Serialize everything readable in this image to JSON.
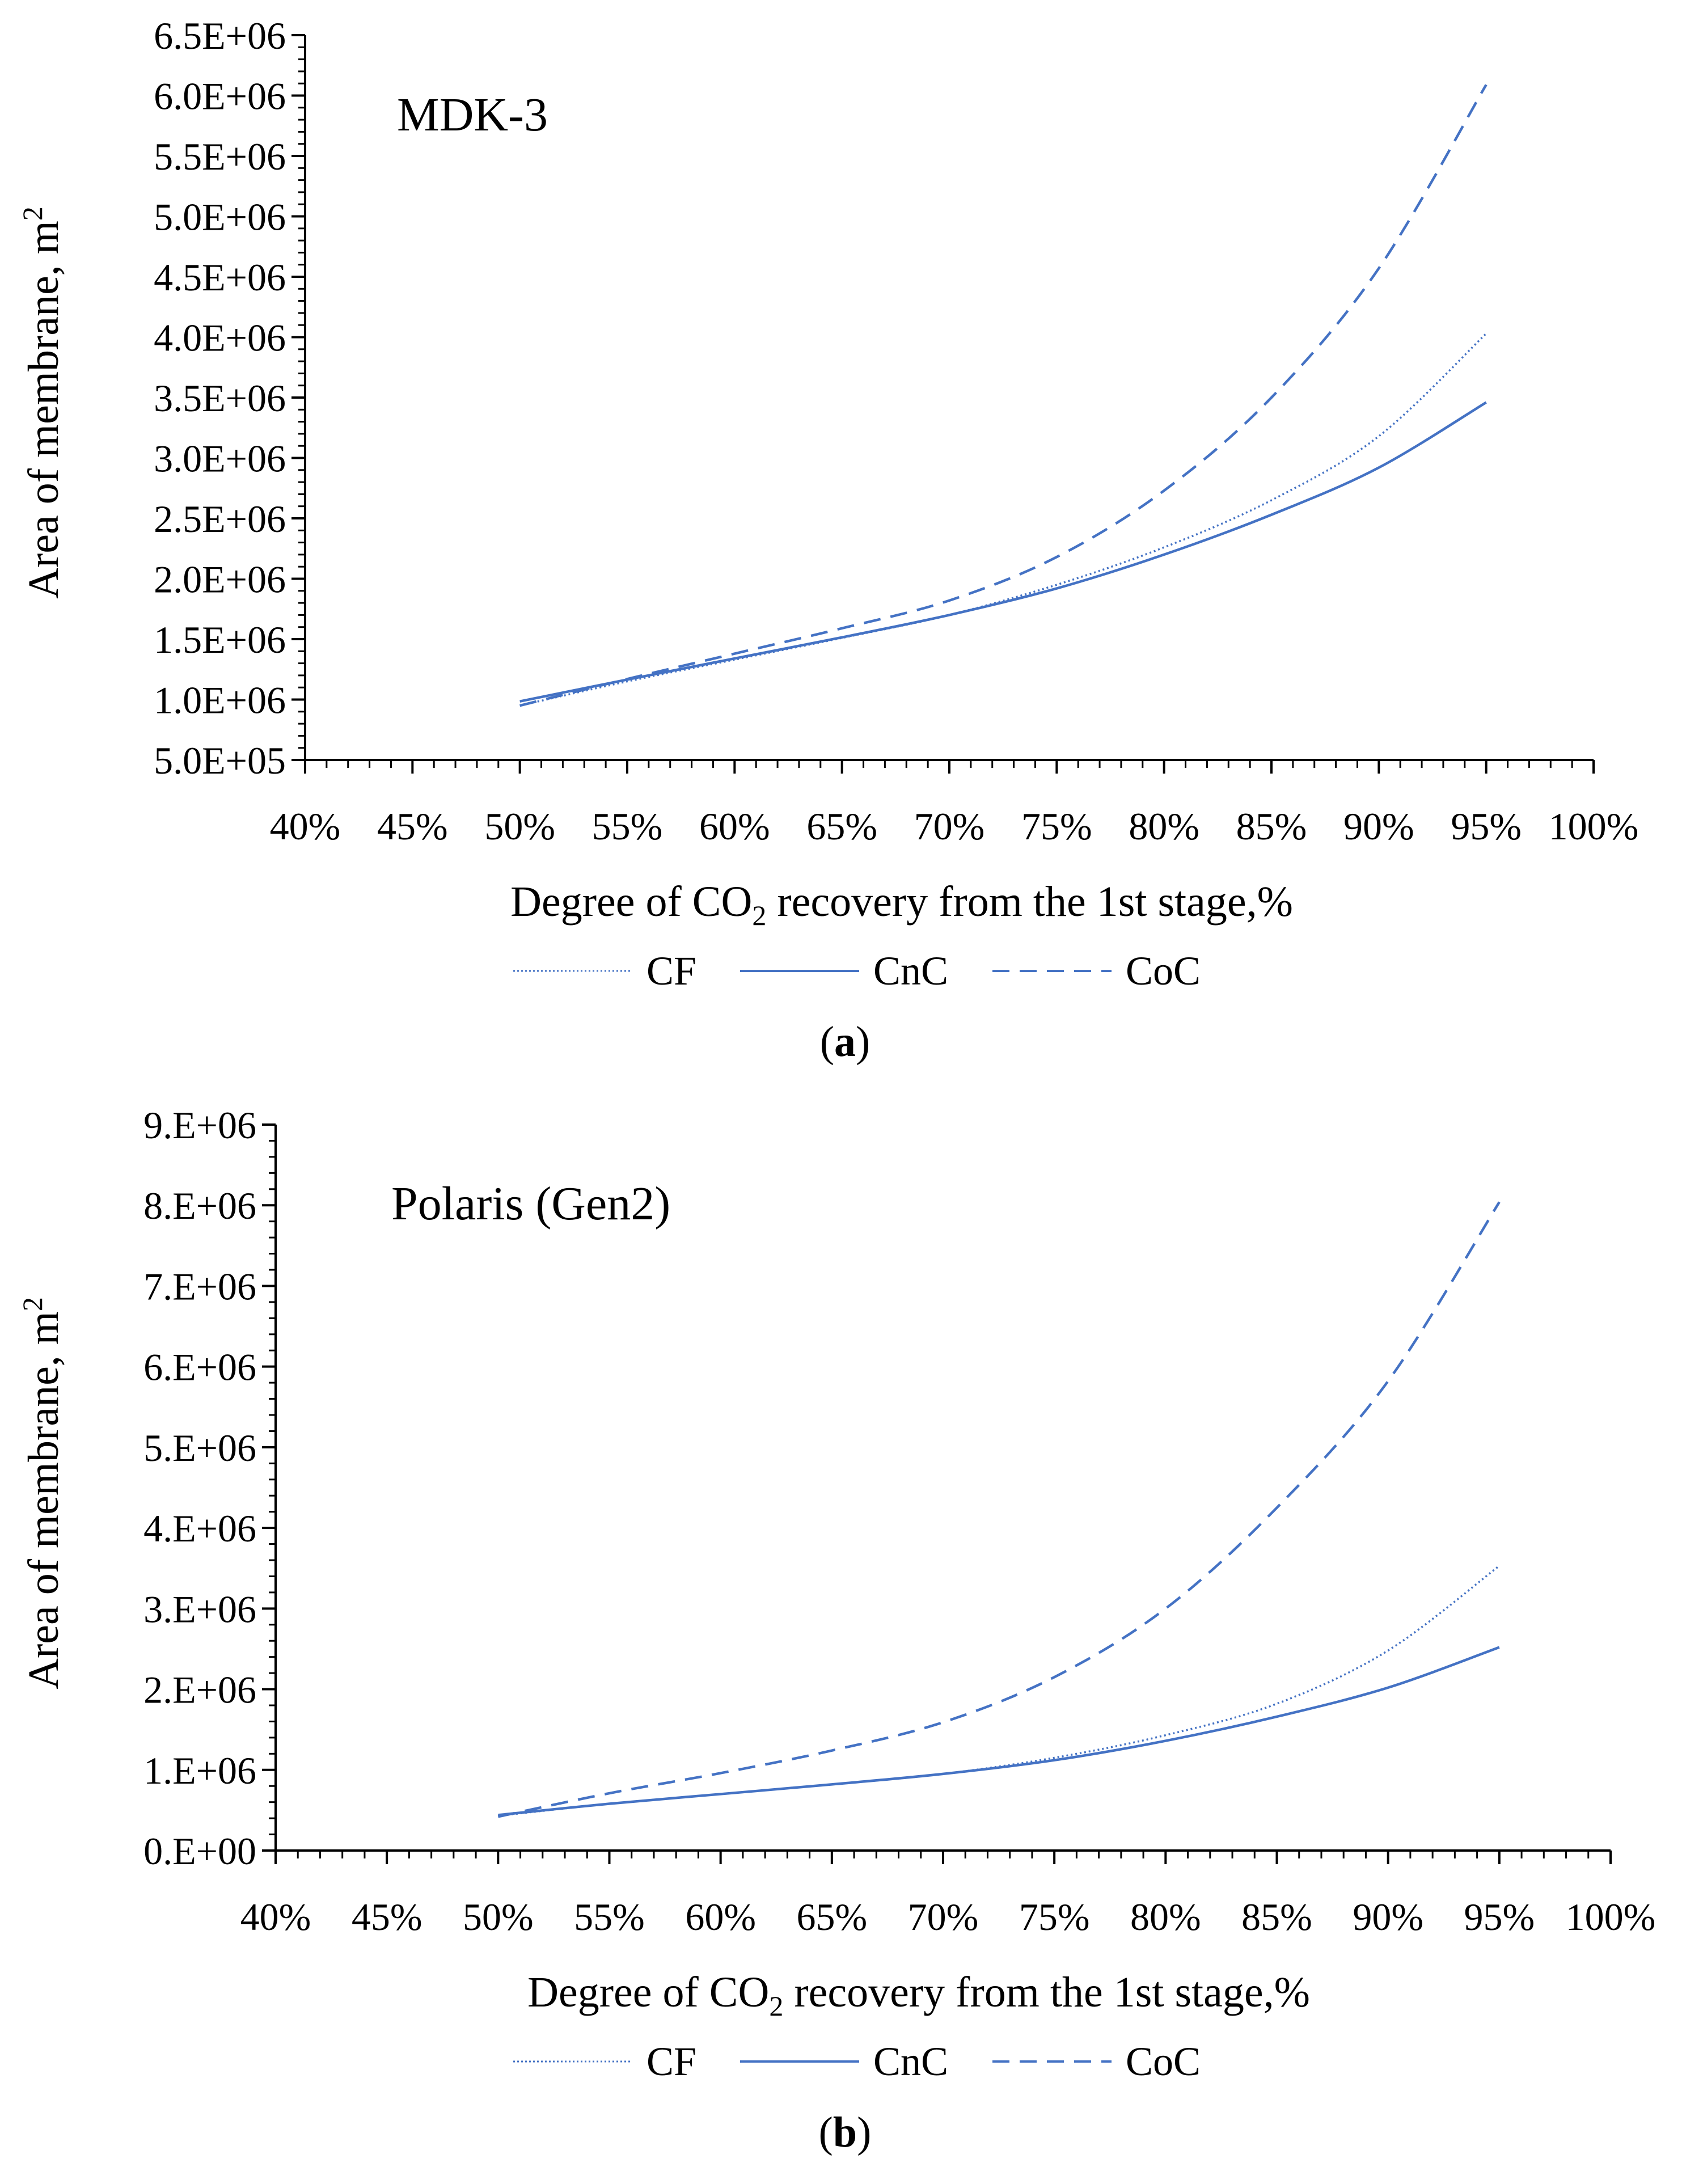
{
  "charts": [
    {
      "id": "a",
      "panel_label": "a",
      "membrane_label": "MDK-3",
      "ylabel": "Area of membrane, m",
      "ylabel_sup": "2",
      "xlabel_pre": "Degree of CO",
      "xlabel_sub": "2",
      "xlabel_post": " recovery from the 1st stage,%",
      "xticks": [
        "40%",
        "45%",
        "50%",
        "55%",
        "60%",
        "65%",
        "70%",
        "75%",
        "80%",
        "85%",
        "90%",
        "95%",
        "100%"
      ],
      "yticks": [
        "5.0E+05",
        "1.0E+06",
        "1.5E+06",
        "2.0E+06",
        "2.5E+06",
        "3.0E+06",
        "3.5E+06",
        "4.0E+06",
        "4.5E+06",
        "5.0E+06",
        "5.5E+06",
        "6.0E+06",
        "6.5E+06"
      ],
      "legend": [
        "CF",
        "CnC",
        "CoC"
      ]
    },
    {
      "id": "b",
      "panel_label": "b",
      "membrane_label": "Polaris (Gen2)",
      "ylabel": "Area of membrane, m",
      "ylabel_sup": "2",
      "xlabel_pre": "Degree of CO",
      "xlabel_sub": "2",
      "xlabel_post": " recovery from the 1st stage,%",
      "xticks": [
        "40%",
        "45%",
        "50%",
        "55%",
        "60%",
        "65%",
        "70%",
        "75%",
        "80%",
        "85%",
        "90%",
        "95%",
        "100%"
      ],
      "yticks": [
        "0.E+00",
        "1.E+06",
        "2.E+06",
        "3.E+06",
        "4.E+06",
        "5.E+06",
        "6.E+06",
        "7.E+06",
        "8.E+06",
        "9.E+06"
      ],
      "legend": [
        "CF",
        "CnC",
        "CoC"
      ]
    }
  ],
  "colors": {
    "series": "#4472c4",
    "axis": "#000000"
  },
  "chart_data": [
    {
      "type": "line",
      "title": "MDK-3",
      "xlabel": "Degree of CO2 recovery from the 1st stage,%",
      "ylabel": "Area of membrane, m2",
      "xlim": [
        40,
        100
      ],
      "ylim": [
        500000,
        6500000
      ],
      "x": [
        50,
        55,
        60,
        65,
        70,
        75,
        80,
        85,
        90,
        95
      ],
      "series": [
        {
          "name": "CF",
          "style": "dotted",
          "values": [
            950000,
            1150000,
            1330000,
            1510000,
            1700000,
            1950000,
            2260000,
            2650000,
            3180000,
            4030000
          ]
        },
        {
          "name": "CnC",
          "style": "solid",
          "values": [
            985000,
            1165000,
            1340000,
            1515000,
            1700000,
            1920000,
            2200000,
            2530000,
            2920000,
            3460000
          ]
        },
        {
          "name": "CoC",
          "style": "dashed",
          "values": [
            950000,
            1170000,
            1380000,
            1590000,
            1820000,
            2180000,
            2730000,
            3500000,
            4570000,
            6090000
          ]
        }
      ]
    },
    {
      "type": "line",
      "title": "Polaris (Gen2)",
      "xlabel": "Degree of CO2 recovery from the 1st stage,%",
      "ylabel": "Area of membrane, m2",
      "xlim": [
        40,
        100
      ],
      "ylim": [
        0,
        9000000
      ],
      "x": [
        50,
        55,
        60,
        65,
        70,
        75,
        80,
        85,
        90,
        95
      ],
      "series": [
        {
          "name": "CF",
          "style": "dotted",
          "values": [
            430000,
            580000,
            700000,
            820000,
            950000,
            1150000,
            1430000,
            1820000,
            2480000,
            3530000
          ]
        },
        {
          "name": "CnC",
          "style": "solid",
          "values": [
            440000,
            580000,
            700000,
            820000,
            950000,
            1120000,
            1360000,
            1660000,
            2020000,
            2520000
          ]
        },
        {
          "name": "CoC",
          "style": "dashed",
          "values": [
            420000,
            710000,
            960000,
            1240000,
            1590000,
            2150000,
            3000000,
            4250000,
            5820000,
            8040000
          ]
        }
      ]
    }
  ]
}
